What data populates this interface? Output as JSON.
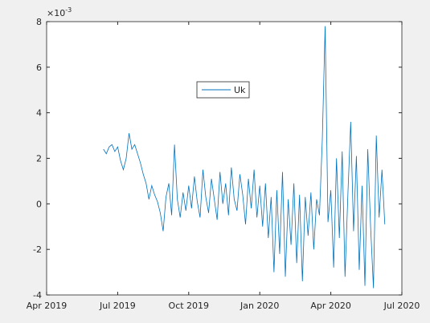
{
  "chart_data": {
    "type": "line",
    "y_multiplier": "×10",
    "y_multiplier_exponent": "-3",
    "xlim": [
      2019.25,
      2020.5
    ],
    "xticks": [
      {
        "value": 2019.25,
        "label": "Apr 2019"
      },
      {
        "value": 2019.5,
        "label": "Jul 2019"
      },
      {
        "value": 2019.75,
        "label": "Oct 2019"
      },
      {
        "value": 2020.0,
        "label": "Jan 2020"
      },
      {
        "value": 2020.25,
        "label": "Apr 2020"
      },
      {
        "value": 2020.5,
        "label": "Jul 2020"
      }
    ],
    "ylim": [
      -4,
      8
    ],
    "yticks": [
      -4,
      -2,
      0,
      2,
      4,
      6,
      8
    ],
    "grid": false,
    "legend": "top-center",
    "x": [
      2019.45,
      2019.46,
      2019.47,
      2019.48,
      2019.49,
      2019.5,
      2019.51,
      2019.52,
      2019.53,
      2019.54,
      2019.55,
      2019.56,
      2019.57,
      2019.58,
      2019.59,
      2019.6,
      2019.61,
      2019.62,
      2019.63,
      2019.64,
      2019.65,
      2019.66,
      2019.67,
      2019.68,
      2019.69,
      2019.7,
      2019.71,
      2019.72,
      2019.73,
      2019.74,
      2019.75,
      2019.76,
      2019.77,
      2019.78,
      2019.79,
      2019.8,
      2019.81,
      2019.82,
      2019.83,
      2019.84,
      2019.85,
      2019.86,
      2019.87,
      2019.88,
      2019.89,
      2019.9,
      2019.91,
      2019.92,
      2019.93,
      2019.94,
      2019.95,
      2019.96,
      2019.97,
      2019.98,
      2019.99,
      2020.0,
      2020.01,
      2020.02,
      2020.03,
      2020.04,
      2020.05,
      2020.06,
      2020.07,
      2020.08,
      2020.09,
      2020.1,
      2020.11,
      2020.12,
      2020.13,
      2020.14,
      2020.15,
      2020.16,
      2020.17,
      2020.18,
      2020.19,
      2020.2,
      2020.21,
      2020.22,
      2020.23,
      2020.24,
      2020.25,
      2020.26,
      2020.27,
      2020.28,
      2020.29,
      2020.3,
      2020.31,
      2020.32,
      2020.33,
      2020.34,
      2020.35,
      2020.36,
      2020.37,
      2020.38,
      2020.39,
      2020.4,
      2020.41,
      2020.42,
      2020.43,
      2020.44
    ],
    "series": [
      {
        "name": "Uk",
        "color": "#0072bd",
        "values": [
          2.4,
          2.2,
          2.5,
          2.6,
          2.3,
          2.5,
          1.9,
          1.5,
          2.0,
          3.1,
          2.4,
          2.6,
          2.2,
          1.8,
          1.3,
          0.9,
          0.2,
          0.8,
          0.4,
          0.1,
          -0.4,
          -1.2,
          0.3,
          0.9,
          -0.5,
          2.6,
          0.2,
          -0.6,
          0.5,
          -0.3,
          0.8,
          -0.2,
          1.2,
          0.1,
          -0.6,
          1.5,
          0.3,
          -0.4,
          1.1,
          0.2,
          -0.7,
          1.4,
          0.0,
          0.9,
          -0.5,
          1.6,
          0.2,
          -0.3,
          1.3,
          0.4,
          -0.9,
          1.1,
          -0.2,
          1.5,
          -0.6,
          0.8,
          -1.0,
          0.9,
          -1.5,
          0.3,
          -3.0,
          0.6,
          -2.2,
          1.4,
          -3.2,
          0.2,
          -1.8,
          0.9,
          -2.6,
          0.4,
          -3.4,
          0.3,
          -1.4,
          0.5,
          -2.0,
          0.2,
          -0.5,
          2.8,
          7.8,
          -0.8,
          0.6,
          -2.8,
          2.0,
          -1.5,
          2.3,
          -3.2,
          0.4,
          3.6,
          -1.2,
          2.1,
          -2.9,
          0.8,
          -3.6,
          2.4,
          -1.0,
          -3.7,
          3.0,
          -0.6,
          1.5,
          -0.9
        ]
      }
    ]
  }
}
